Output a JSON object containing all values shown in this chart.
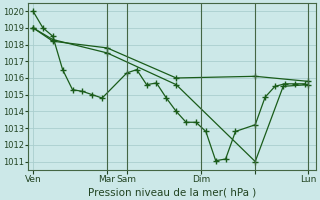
{
  "background_color": "#cce8e8",
  "plot_bg_color": "#cce8e8",
  "grid_color": "#aacece",
  "line_color": "#1a5c1a",
  "ylim": [
    1010.5,
    1020.5
  ],
  "xlim": [
    0,
    175
  ],
  "yticks": [
    1011,
    1012,
    1013,
    1014,
    1015,
    1016,
    1017,
    1018,
    1019,
    1020
  ],
  "xtick_positions": [
    3,
    48,
    60,
    105,
    138,
    170
  ],
  "xtick_labels": [
    "Ven",
    "Mar",
    "Sam",
    "Dim",
    "",
    "Lun"
  ],
  "xlabel": "Pression niveau de la mer( hPa )",
  "vline_positions": [
    48,
    60,
    105,
    138,
    170
  ],
  "series1_x": [
    3,
    9,
    15,
    21,
    27,
    33,
    39,
    45,
    60,
    66,
    72,
    78,
    84,
    90,
    96,
    102,
    108,
    114,
    120,
    126,
    138,
    144,
    150,
    156,
    162,
    168
  ],
  "series1_y": [
    1020,
    1019,
    1018.5,
    1016.5,
    1015.3,
    1015.2,
    1015.0,
    1014.8,
    1016.3,
    1016.5,
    1015.6,
    1015.7,
    1014.8,
    1014.0,
    1013.35,
    1013.35,
    1012.8,
    1011.05,
    1011.15,
    1012.8,
    1013.2,
    1014.85,
    1015.5,
    1015.65,
    1015.65,
    1015.65
  ],
  "series2_x": [
    3,
    15,
    48,
    90,
    138,
    170
  ],
  "series2_y": [
    1019.0,
    1018.2,
    1017.8,
    1016.0,
    1016.1,
    1015.8
  ],
  "series3_x": [
    3,
    15,
    48,
    90,
    138,
    155,
    170
  ],
  "series3_y": [
    1019.0,
    1018.3,
    1017.5,
    1015.6,
    1011.0,
    1015.5,
    1015.6
  ]
}
